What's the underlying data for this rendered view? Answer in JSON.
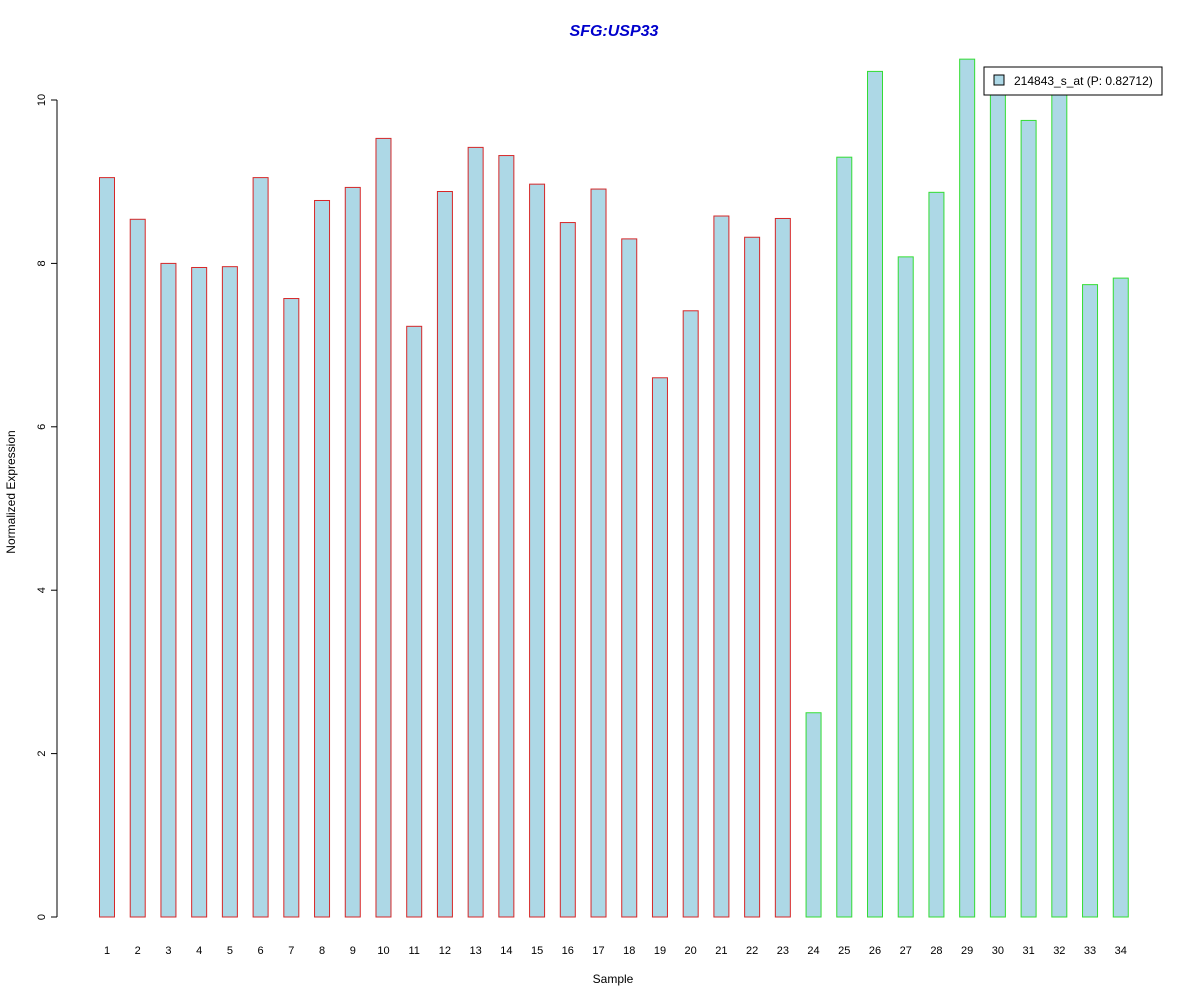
{
  "chart_data": {
    "type": "bar",
    "title": "SFG:USP33",
    "xlabel": "Sample",
    "ylabel": "Normalized Expression",
    "categories": [
      "1",
      "2",
      "3",
      "4",
      "5",
      "6",
      "7",
      "8",
      "9",
      "10",
      "11",
      "12",
      "13",
      "14",
      "15",
      "16",
      "17",
      "18",
      "19",
      "20",
      "21",
      "22",
      "23",
      "24",
      "25",
      "26",
      "27",
      "28",
      "29",
      "30",
      "31",
      "32",
      "33",
      "34"
    ],
    "values": [
      9.05,
      8.54,
      8.0,
      7.95,
      7.96,
      9.05,
      7.57,
      8.77,
      8.93,
      9.53,
      7.23,
      8.88,
      9.42,
      9.32,
      8.97,
      8.5,
      8.91,
      8.3,
      6.6,
      7.42,
      8.58,
      8.32,
      8.55,
      2.5,
      9.3,
      10.35,
      8.08,
      8.87,
      10.5,
      10.2,
      9.75,
      10.2,
      7.74,
      7.82
    ],
    "group_border_colors": [
      "#d62728",
      "#d62728",
      "#d62728",
      "#d62728",
      "#d62728",
      "#d62728",
      "#d62728",
      "#d62728",
      "#d62728",
      "#d62728",
      "#d62728",
      "#d62728",
      "#d62728",
      "#d62728",
      "#d62728",
      "#d62728",
      "#d62728",
      "#d62728",
      "#d62728",
      "#d62728",
      "#d62728",
      "#d62728",
      "#d62728",
      "#33dd33",
      "#33dd33",
      "#33dd33",
      "#33dd33",
      "#33dd33",
      "#33dd33",
      "#33dd33",
      "#33dd33",
      "#33dd33",
      "#33dd33",
      "#33dd33"
    ],
    "bar_fill": "#add8e6",
    "title_color": "#0000cc",
    "yticks": [
      0,
      2,
      4,
      6,
      8,
      10
    ],
    "ylim": [
      0,
      10.6
    ],
    "grid": false,
    "legend": {
      "position": "top-right",
      "entries": [
        {
          "label": "214843_s_at (P: 0.82712)",
          "color": "#add8e6"
        }
      ]
    }
  }
}
